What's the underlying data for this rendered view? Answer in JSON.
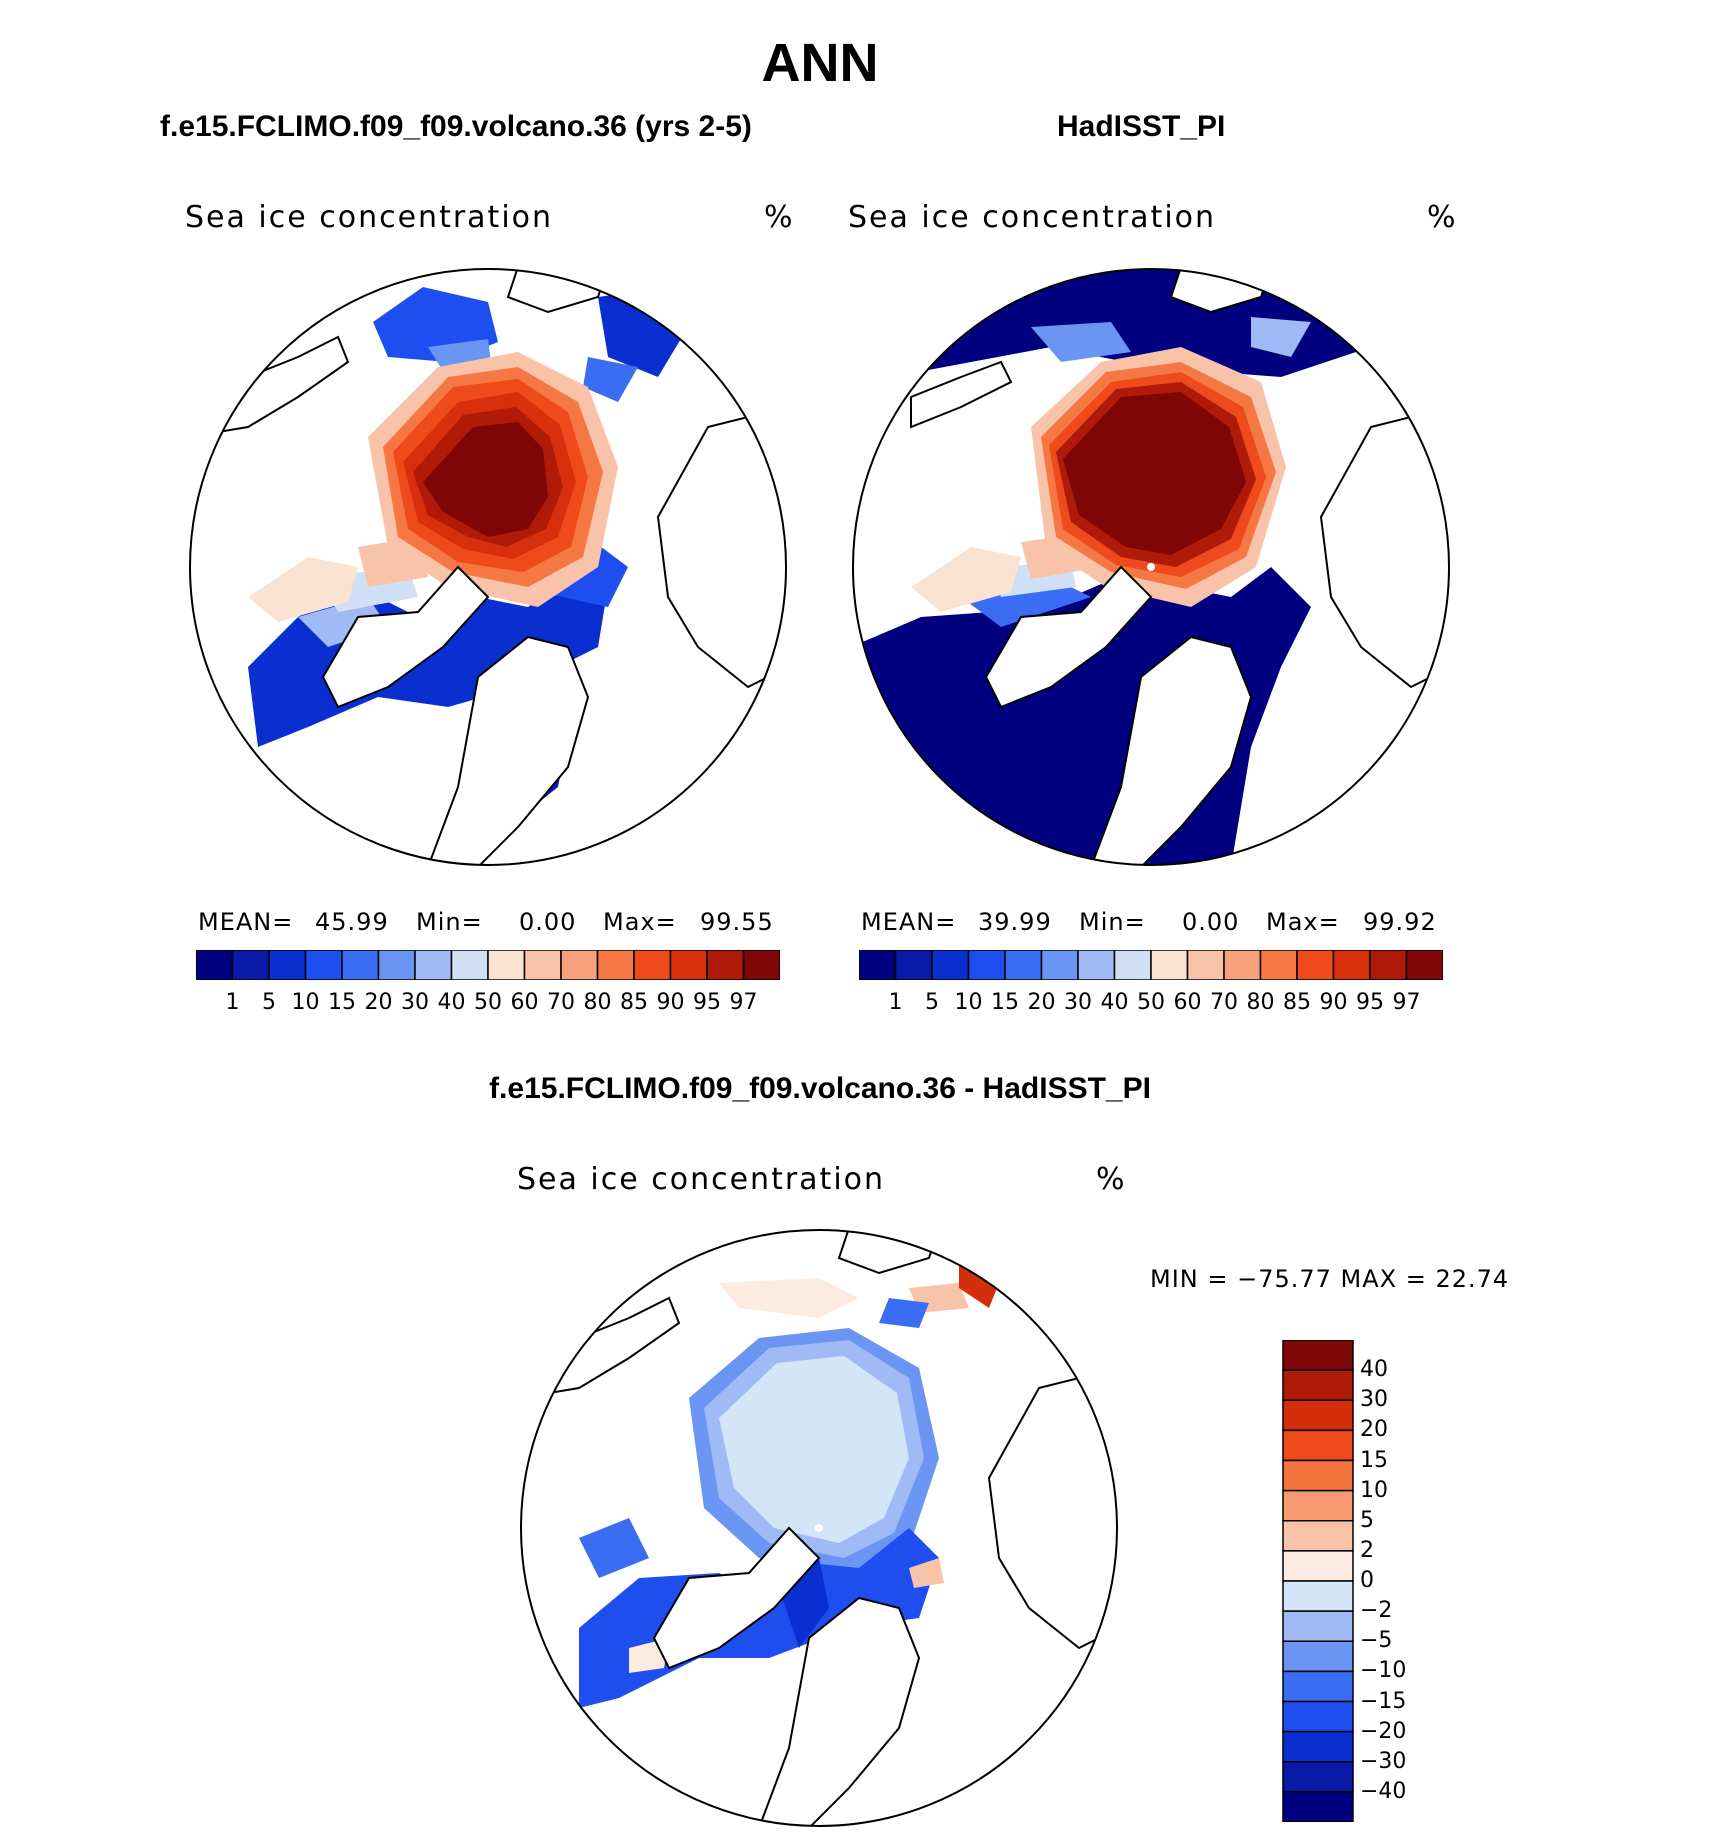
{
  "figure": {
    "title": "ANN",
    "palette_abs": [
      "#000080",
      "#0a1aa8",
      "#0a2fd0",
      "#1e4ef0",
      "#3a6cf4",
      "#6a95f2",
      "#9fbaf5",
      "#cfe0f6",
      "#fbe3d2",
      "#f8c3a8",
      "#f7a07c",
      "#f57844",
      "#ef4a1c",
      "#d8300c",
      "#b01a08",
      "#7e0606"
    ],
    "palette_diff": [
      "#000080",
      "#0a1aa8",
      "#0a2fd0",
      "#1e4ef0",
      "#3a6cf4",
      "#6a95f2",
      "#9fbaf5",
      "#d3e6f8",
      "#fdeae0",
      "#f9c3aa",
      "#f79a72",
      "#f5743e",
      "#ef4a1c",
      "#d42e0a",
      "#b01a08",
      "#7e0606"
    ]
  },
  "panels": [
    {
      "title": "f.e15.FCLIMO.f09_f09.volcano.36 (yrs 2-5)",
      "variable": "Sea ice concentration",
      "units": "%",
      "stats": {
        "mean_label": "MEAN=",
        "mean": "45.99",
        "min_label": "Min=",
        "min": "0.00",
        "max_label": "Max=",
        "max": "99.55"
      }
    },
    {
      "title": "HadISST_PI",
      "variable": "Sea ice concentration",
      "units": "%",
      "stats": {
        "mean_label": "MEAN=",
        "mean": "39.99",
        "min_label": "Min=",
        "min": "0.00",
        "max_label": "Max=",
        "max": "99.92"
      }
    }
  ],
  "diff_panel": {
    "title": "f.e15.FCLIMO.f09_f09.volcano.36 - HadISST_PI",
    "variable": "Sea ice concentration",
    "units": "%",
    "minmax": "MIN = −75.77 MAX =   22.74"
  },
  "chart_data": [
    {
      "type": "heatmap",
      "title": "f.e15.FCLIMO.f09_f09.volcano.36 (yrs 2-5)",
      "variable": "Sea ice concentration",
      "units": "%",
      "projection": "polar stereographic, north pole",
      "contour_levels": [
        1,
        5,
        10,
        15,
        20,
        30,
        40,
        50,
        60,
        70,
        80,
        85,
        90,
        95,
        97
      ],
      "stats": {
        "mean": 45.99,
        "min": 0.0,
        "max": 99.55
      }
    },
    {
      "type": "heatmap",
      "title": "HadISST_PI",
      "variable": "Sea ice concentration",
      "units": "%",
      "projection": "polar stereographic, north pole",
      "contour_levels": [
        1,
        5,
        10,
        15,
        20,
        30,
        40,
        50,
        60,
        70,
        80,
        85,
        90,
        95,
        97
      ],
      "stats": {
        "mean": 39.99,
        "min": 0.0,
        "max": 99.92
      }
    },
    {
      "type": "heatmap",
      "title": "f.e15.FCLIMO.f09_f09.volcano.36 - HadISST_PI",
      "variable": "Sea ice concentration",
      "units": "%",
      "projection": "polar stereographic, north pole",
      "contour_levels": [
        -40,
        -30,
        -20,
        -15,
        -10,
        -5,
        -2,
        0,
        2,
        5,
        10,
        15,
        20,
        30,
        40
      ],
      "stats": {
        "min": -75.77,
        "max": 22.74
      }
    }
  ],
  "colorbar_abs": {
    "labels": [
      "1",
      "5",
      "10",
      "15",
      "20",
      "30",
      "40",
      "50",
      "60",
      "70",
      "80",
      "85",
      "90",
      "95",
      "97"
    ]
  },
  "colorbar_diff": {
    "labels": [
      "40",
      "30",
      "20",
      "15",
      "10",
      "5",
      "2",
      "0",
      "−2",
      "−5",
      "−10",
      "−15",
      "−20",
      "−30",
      "−40"
    ]
  }
}
